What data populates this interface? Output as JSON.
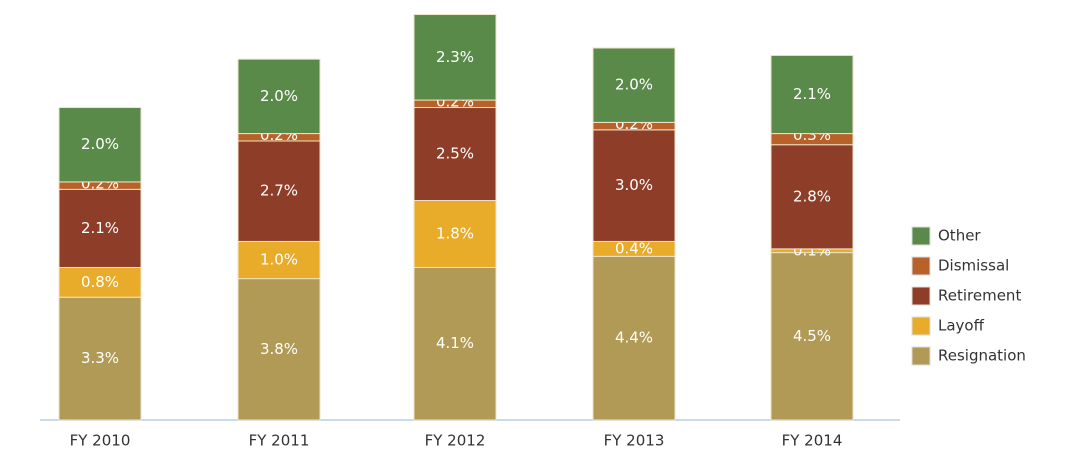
{
  "chart_data": {
    "type": "stacked-bar",
    "categories": [
      "FY 2010",
      "FY 2011",
      "FY 2012",
      "FY 2013",
      "FY 2014"
    ],
    "series": [
      {
        "name": "Resignation",
        "color": "#b09a55",
        "values": [
          3.3,
          3.8,
          4.1,
          4.4,
          4.5
        ],
        "value_labels": [
          "3.3%",
          "3.8%",
          "4.1%",
          "4.4%",
          "4.5%"
        ]
      },
      {
        "name": "Layoff",
        "color": "#e8ac2a",
        "values": [
          0.8,
          1.0,
          1.8,
          0.4,
          0.1
        ],
        "value_labels": [
          "0.8%",
          "1.0%",
          "1.8%",
          "0.4%",
          "0.1%"
        ]
      },
      {
        "name": "Retirement",
        "color": "#8e3e28",
        "values": [
          2.1,
          2.7,
          2.5,
          3.0,
          2.8
        ],
        "value_labels": [
          "2.1%",
          "2.7%",
          "2.5%",
          "3.0%",
          "2.8%"
        ]
      },
      {
        "name": "Dismissal",
        "color": "#b8622a",
        "values": [
          0.2,
          0.2,
          0.2,
          0.2,
          0.3
        ],
        "value_labels": [
          "0.2%",
          "0.2%",
          "0.2%",
          "0.2%",
          "0.3%"
        ]
      },
      {
        "name": "Other",
        "color": "#5a8a4a",
        "values": [
          2.0,
          2.0,
          2.3,
          2.0,
          2.1
        ],
        "value_labels": [
          "2.0%",
          "2.0%",
          "2.3%",
          "2.0%",
          "2.1%"
        ]
      }
    ],
    "legend": "right"
  }
}
